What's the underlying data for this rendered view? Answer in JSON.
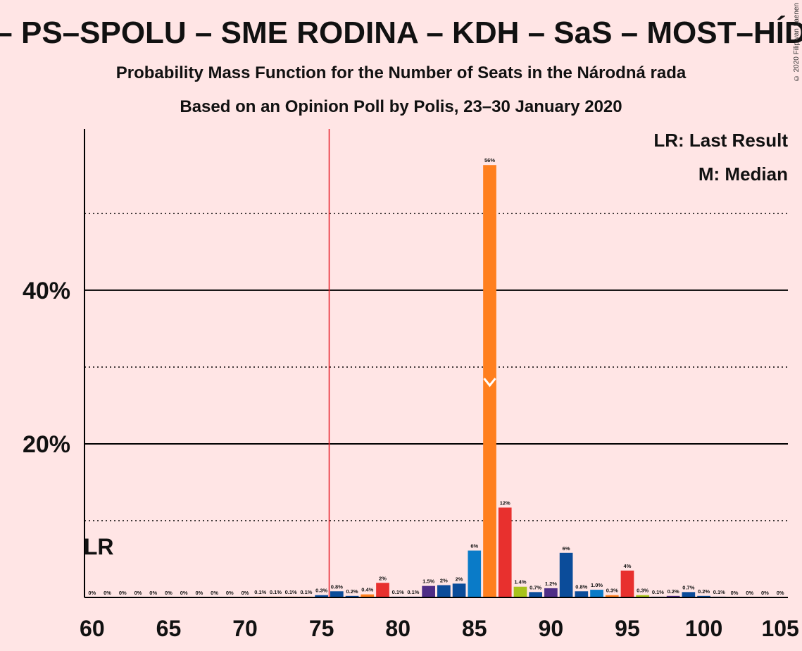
{
  "header": {
    "title": "– PS–SPOLU – SME RODINA – KDH – SaS – MOST–HÍD",
    "subtitle1": "Probability Mass Function for the Number of Seats in the Národná rada",
    "subtitle2": "Based on an Opinion Poll by Polis, 23–30 January 2020",
    "copyright": "© 2020 Filip van Laenen"
  },
  "legend": {
    "lr": "LR: Last Result",
    "m": "M: Median"
  },
  "lr_marker": {
    "label": "LR",
    "x": 60
  },
  "colors": {
    "background": "#FFE5E5",
    "threshold_line": "#E8202A",
    "orange": "#FF7F1E",
    "red": "#E8302E",
    "blue": "#0A7BC8",
    "darkblue": "#0B4C9A",
    "purple": "#4E2D86",
    "lime": "#A8C31A",
    "navy": "#1B3F7A"
  },
  "chart_data": {
    "type": "bar",
    "xlabel": "",
    "ylabel": "",
    "xlim": [
      60,
      105
    ],
    "ylim": [
      0,
      61
    ],
    "x_ticks": [
      60,
      65,
      70,
      75,
      80,
      85,
      90,
      95,
      100,
      105
    ],
    "y_ticks": [
      {
        "value": 20,
        "label": "20%"
      },
      {
        "value": 40,
        "label": "40%"
      }
    ],
    "major_gridlines": [
      20,
      40
    ],
    "minor_gridlines": [
      10,
      30,
      50
    ],
    "threshold": 76,
    "median": 86,
    "bars": [
      {
        "x": 60,
        "value": 0,
        "label": "0%",
        "color": "orange"
      },
      {
        "x": 61,
        "value": 0,
        "label": "0%",
        "color": "orange"
      },
      {
        "x": 62,
        "value": 0,
        "label": "0%",
        "color": "orange"
      },
      {
        "x": 63,
        "value": 0,
        "label": "0%",
        "color": "orange"
      },
      {
        "x": 64,
        "value": 0,
        "label": "0%",
        "color": "orange"
      },
      {
        "x": 65,
        "value": 0,
        "label": "0%",
        "color": "orange"
      },
      {
        "x": 66,
        "value": 0,
        "label": "0%",
        "color": "orange"
      },
      {
        "x": 67,
        "value": 0,
        "label": "0%",
        "color": "orange"
      },
      {
        "x": 68,
        "value": 0,
        "label": "0%",
        "color": "orange"
      },
      {
        "x": 69,
        "value": 0,
        "label": "0%",
        "color": "orange"
      },
      {
        "x": 70,
        "value": 0,
        "label": "0%",
        "color": "orange"
      },
      {
        "x": 71,
        "value": 0.1,
        "label": "0.1%",
        "color": "orange"
      },
      {
        "x": 72,
        "value": 0.1,
        "label": "0.1%",
        "color": "orange"
      },
      {
        "x": 73,
        "value": 0.1,
        "label": "0.1%",
        "color": "orange"
      },
      {
        "x": 74,
        "value": 0.1,
        "label": "0.1%",
        "color": "orange"
      },
      {
        "x": 75,
        "value": 0.3,
        "label": "0.3%",
        "color": "darkblue"
      },
      {
        "x": 76,
        "value": 0.8,
        "label": "0.8%",
        "color": "darkblue"
      },
      {
        "x": 77,
        "value": 0.2,
        "label": "0.2%",
        "color": "darkblue"
      },
      {
        "x": 78,
        "value": 0.4,
        "label": "0.4%",
        "color": "orange"
      },
      {
        "x": 79,
        "value": 1.9,
        "label": "2%",
        "color": "red"
      },
      {
        "x": 80,
        "value": 0.1,
        "label": "0.1%",
        "color": "darkblue"
      },
      {
        "x": 81,
        "value": 0.1,
        "label": "0.1%",
        "color": "darkblue"
      },
      {
        "x": 82,
        "value": 1.5,
        "label": "1.5%",
        "color": "purple"
      },
      {
        "x": 83,
        "value": 1.6,
        "label": "2%",
        "color": "darkblue"
      },
      {
        "x": 84,
        "value": 1.8,
        "label": "2%",
        "color": "darkblue"
      },
      {
        "x": 85,
        "value": 6.1,
        "label": "6%",
        "color": "blue"
      },
      {
        "x": 86,
        "value": 56.3,
        "label": "56%",
        "color": "orange"
      },
      {
        "x": 87,
        "value": 11.7,
        "label": "12%",
        "color": "red"
      },
      {
        "x": 88,
        "value": 1.4,
        "label": "1.4%",
        "color": "lime"
      },
      {
        "x": 89,
        "value": 0.7,
        "label": "0.7%",
        "color": "darkblue"
      },
      {
        "x": 90,
        "value": 1.2,
        "label": "1.2%",
        "color": "purple"
      },
      {
        "x": 91,
        "value": 5.8,
        "label": "6%",
        "color": "darkblue"
      },
      {
        "x": 92,
        "value": 0.8,
        "label": "0.8%",
        "color": "darkblue"
      },
      {
        "x": 93,
        "value": 1.0,
        "label": "1.0%",
        "color": "blue"
      },
      {
        "x": 94,
        "value": 0.3,
        "label": "0.3%",
        "color": "orange"
      },
      {
        "x": 95,
        "value": 3.5,
        "label": "4%",
        "color": "red"
      },
      {
        "x": 96,
        "value": 0.3,
        "label": "0.3%",
        "color": "lime"
      },
      {
        "x": 97,
        "value": 0.1,
        "label": "0.1%",
        "color": "darkblue"
      },
      {
        "x": 98,
        "value": 0.2,
        "label": "0.2%",
        "color": "purple"
      },
      {
        "x": 99,
        "value": 0.7,
        "label": "0.7%",
        "color": "darkblue"
      },
      {
        "x": 100,
        "value": 0.2,
        "label": "0.2%",
        "color": "darkblue"
      },
      {
        "x": 101,
        "value": 0.1,
        "label": "0.1%",
        "color": "darkblue"
      },
      {
        "x": 102,
        "value": 0,
        "label": "0%",
        "color": "orange"
      },
      {
        "x": 103,
        "value": 0,
        "label": "0%",
        "color": "orange"
      },
      {
        "x": 104,
        "value": 0,
        "label": "0%",
        "color": "orange"
      },
      {
        "x": 105,
        "value": 0,
        "label": "0%",
        "color": "orange"
      }
    ]
  }
}
